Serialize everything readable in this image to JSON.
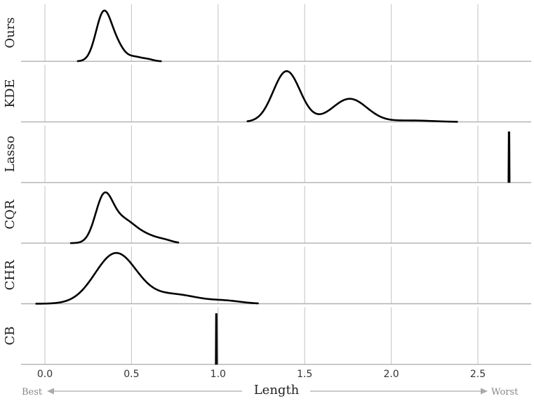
{
  "chart_data": {
    "type": "ridgeline-density",
    "xlabel": "Length",
    "left_annotation": "Best",
    "right_annotation": "Worst",
    "xlim": [
      -0.12,
      2.8
    ],
    "xticks": [
      0.0,
      0.5,
      1.0,
      1.5,
      2.0,
      2.5
    ],
    "xtick_labels": [
      "0.0",
      "0.5",
      "1.0",
      "1.5",
      "2.0",
      "2.5"
    ],
    "grid": "vertical",
    "series": [
      {
        "name": "Ours",
        "range": [
          0.19,
          0.67
        ],
        "components": [
          [
            0.34,
            0.045,
            1.0
          ],
          [
            0.42,
            0.04,
            0.25
          ],
          [
            0.52,
            0.045,
            0.09
          ],
          [
            0.6,
            0.03,
            0.03
          ]
        ]
      },
      {
        "name": "KDE",
        "range": [
          1.17,
          2.38
        ],
        "components": [
          [
            1.39,
            0.075,
            1.0
          ],
          [
            1.46,
            0.07,
            0.12
          ],
          [
            1.76,
            0.1,
            0.49
          ],
          [
            2.12,
            0.12,
            0.03
          ]
        ]
      },
      {
        "name": "Lasso",
        "spike": 2.68
      },
      {
        "name": "CQR",
        "range": [
          0.15,
          0.77
        ],
        "components": [
          [
            0.34,
            0.05,
            0.85
          ],
          [
            0.45,
            0.075,
            0.45
          ],
          [
            0.6,
            0.07,
            0.12
          ],
          [
            0.7,
            0.04,
            0.03
          ]
        ]
      },
      {
        "name": "CHR",
        "range": [
          -0.05,
          1.23
        ],
        "components": [
          [
            0.41,
            0.12,
            1.0
          ],
          [
            0.75,
            0.14,
            0.18
          ],
          [
            1.05,
            0.09,
            0.05
          ]
        ]
      },
      {
        "name": "CB",
        "spike": 0.99
      }
    ]
  },
  "colors": {
    "line": "#000000",
    "grid": "#cccccc",
    "baseline": "#b0b0b0",
    "arrow": "#aaaaaa"
  }
}
